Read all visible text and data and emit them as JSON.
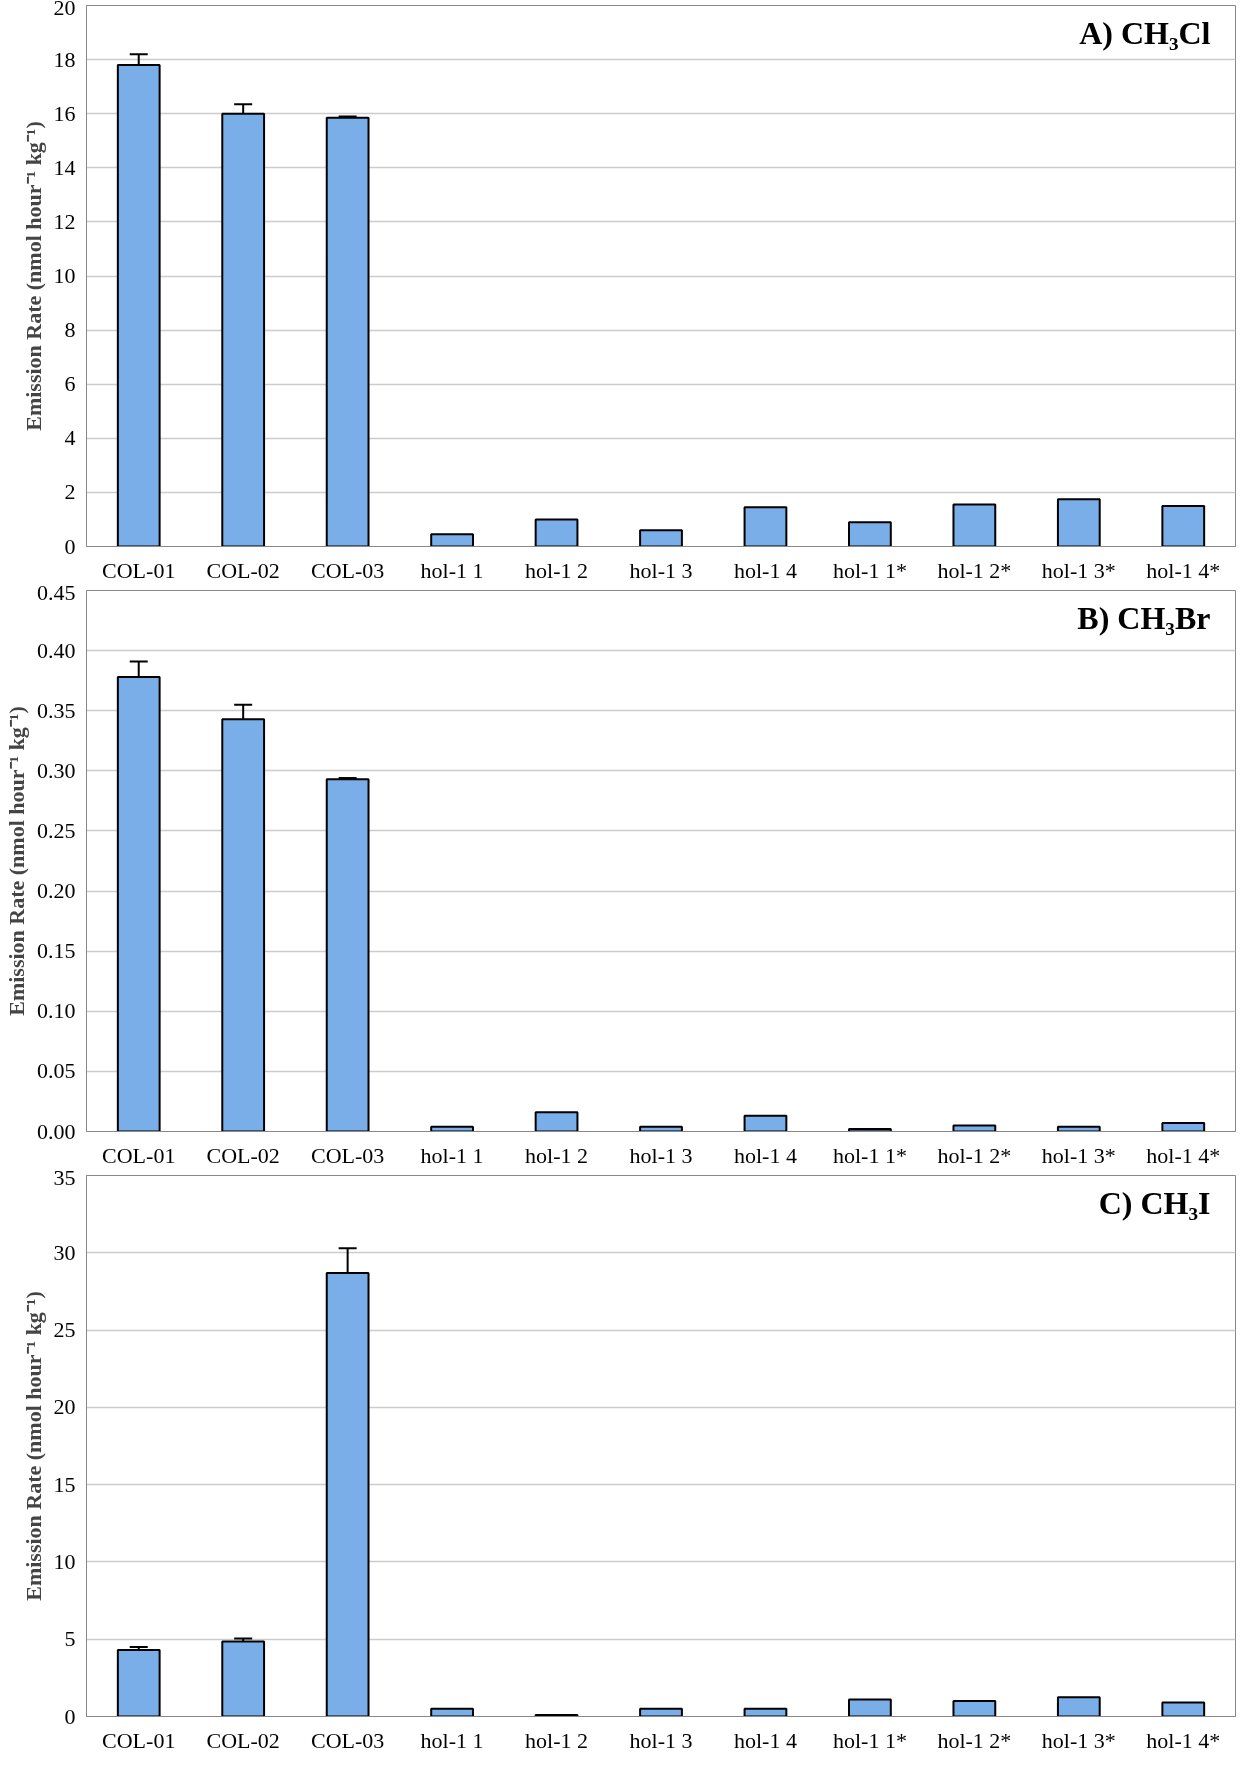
{
  "chart_data": [
    {
      "type": "bar",
      "title": "A) CH₃Cl",
      "ylabel": "Emission Rate (nmol hour⁻¹ kg⁻¹)",
      "categories": [
        "COL-01",
        "COL-02",
        "COL-03",
        "hol-1 1",
        "hol-1 2",
        "hol-1 3",
        "hol-1 4",
        "hol-1 1*",
        "hol-1 2*",
        "hol-1 3*",
        "hol-1 4*"
      ],
      "values": [
        17.8,
        16.0,
        15.85,
        0.45,
        1.0,
        0.6,
        1.45,
        0.9,
        1.55,
        1.75,
        1.5
      ],
      "errors": [
        0.4,
        0.35,
        0.05,
        null,
        null,
        null,
        null,
        null,
        null,
        null,
        null
      ],
      "color": "#7aaee8",
      "ylim": [
        0,
        20
      ],
      "yticks": [
        0,
        2,
        4,
        6,
        8,
        10,
        12,
        14,
        16,
        18,
        20
      ],
      "grid": "y"
    },
    {
      "type": "bar",
      "title": "B) CH₃Br",
      "ylabel": "Emission Rate (nmol hour⁻¹ kg⁻¹)",
      "categories": [
        "COL-01",
        "COL-02",
        "COL-03",
        "hol-1 1",
        "hol-1 2",
        "hol-1 3",
        "hol-1 4",
        "hol-1 1*",
        "hol-1 2*",
        "hol-1 3*",
        "hol-1 4*"
      ],
      "values": [
        0.378,
        0.343,
        0.293,
        0.004,
        0.016,
        0.004,
        0.013,
        0.002,
        0.005,
        0.004,
        0.007
      ],
      "errors": [
        0.013,
        0.012,
        0.001,
        null,
        null,
        null,
        null,
        null,
        null,
        null,
        null
      ],
      "color": "#7aaee8",
      "ylim": [
        0,
        0.45
      ],
      "yticks": [
        {
          "value": 0,
          "label": "0.00"
        },
        {
          "value": 0.05,
          "label": "0.05"
        },
        {
          "value": 0.1,
          "label": "0.10"
        },
        {
          "value": 0.15,
          "label": "0.15"
        },
        {
          "value": 0.2,
          "label": "0.20"
        },
        {
          "value": 0.25,
          "label": "0.25"
        },
        {
          "value": 0.3,
          "label": "0.30"
        },
        {
          "value": 0.35,
          "label": "0.35"
        },
        {
          "value": 0.4,
          "label": "0.40"
        },
        {
          "value": 0.45,
          "label": "0.45"
        }
      ],
      "grid": "y"
    },
    {
      "type": "bar",
      "title": "C) CH₃I",
      "ylabel": "Emission Rate (nmol hour⁻¹ kg⁻¹)",
      "categories": [
        "COL-01",
        "COL-02",
        "COL-03",
        "hol-1 1",
        "hol-1 2",
        "hol-1 3",
        "hol-1 4",
        "hol-1 1*",
        "hol-1 2*",
        "hol-1 3*",
        "hol-1 4*"
      ],
      "values": [
        4.3,
        4.85,
        28.7,
        0.5,
        0.1,
        0.5,
        0.5,
        1.1,
        1.0,
        1.25,
        0.9
      ],
      "errors": [
        0.2,
        0.2,
        1.6,
        null,
        null,
        null,
        null,
        null,
        null,
        null,
        null
      ],
      "color": "#7aaee8",
      "ylim": [
        0,
        35
      ],
      "yticks": [
        0,
        5,
        10,
        15,
        20,
        25,
        30,
        35
      ],
      "grid": "y"
    }
  ]
}
